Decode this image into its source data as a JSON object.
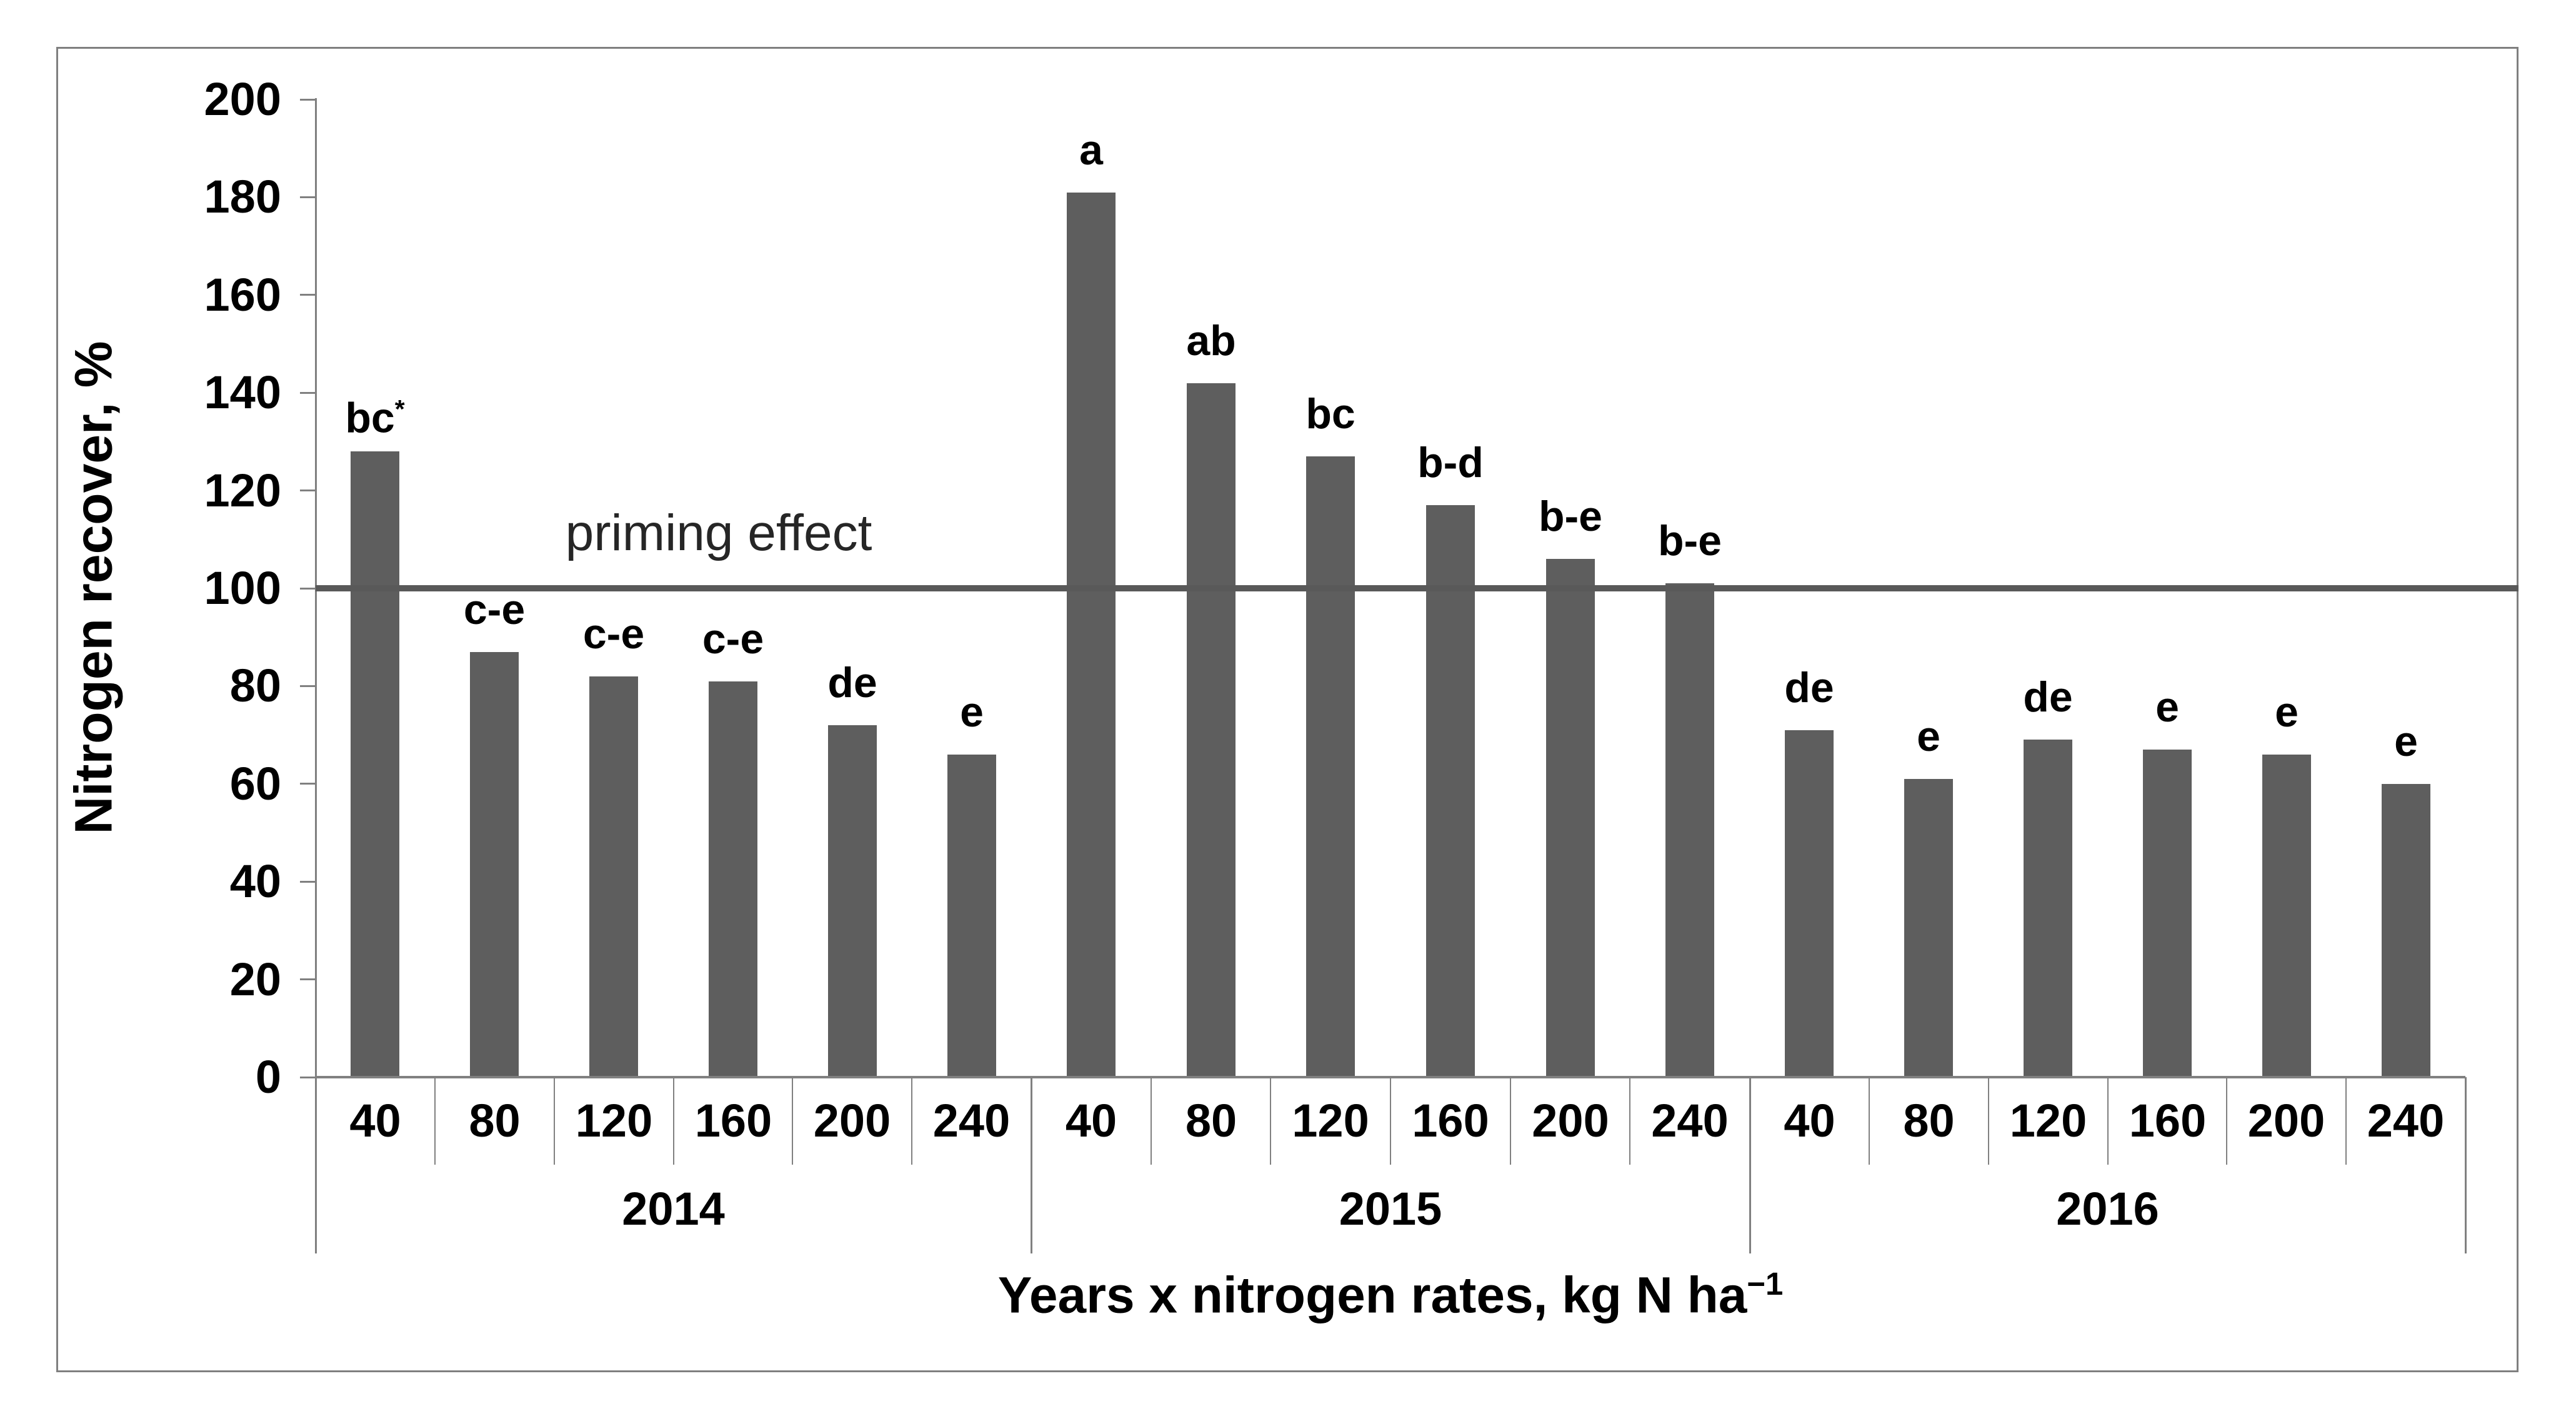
{
  "figure": {
    "y_axis_title": "Nitrogen recover, %",
    "x_axis_title_main": "Years x nitrogen rates, kg N ha",
    "x_axis_title_sup": "−1",
    "reference_label": "priming effect"
  },
  "chart_data": {
    "type": "bar",
    "title": "",
    "ylabel": "Nitrogen recover, %",
    "xlabel": "Years x nitrogen rates, kg N ha⁻¹",
    "ylim": [
      0,
      200
    ],
    "ytick_step": 20,
    "grid": false,
    "legend": false,
    "reference_line": {
      "value": 100,
      "label": "priming effect"
    },
    "groups": [
      {
        "year": "2014",
        "categories": [
          "40",
          "80",
          "120",
          "160",
          "200",
          "240"
        ],
        "values": [
          128,
          87,
          82,
          81,
          72,
          66
        ],
        "sig_labels": [
          "bc*",
          "c-e",
          "c-e",
          "c-e",
          "de",
          "e"
        ]
      },
      {
        "year": "2015",
        "categories": [
          "40",
          "80",
          "120",
          "160",
          "200",
          "240"
        ],
        "values": [
          181,
          142,
          127,
          117,
          106,
          101
        ],
        "sig_labels": [
          "a",
          "ab",
          "bc",
          "b-d",
          "b-e",
          "b-e"
        ]
      },
      {
        "year": "2016",
        "categories": [
          "40",
          "80",
          "120",
          "160",
          "200",
          "240"
        ],
        "values": [
          71,
          61,
          69,
          67,
          66,
          60
        ],
        "sig_labels": [
          "de",
          "e",
          "de",
          "e",
          "e",
          "e"
        ]
      }
    ],
    "bar_color": "#5e5e5e",
    "reference_line_color": "#595959",
    "axis_color": "#808080",
    "frame_color": "#7f7f7f",
    "text_color": "#000000"
  }
}
